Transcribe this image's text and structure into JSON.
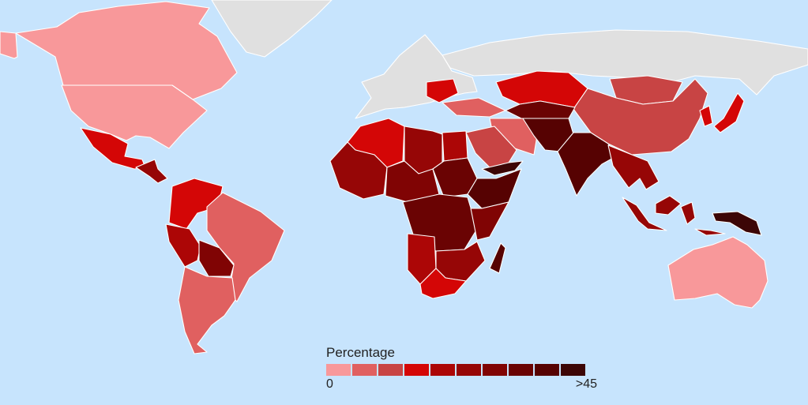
{
  "legend": {
    "title": "Percentage",
    "min_label": "0",
    "max_label": ">45",
    "colors": [
      "#f8989a",
      "#e06060",
      "#c84444",
      "#d40606",
      "#ac0606",
      "#960606",
      "#800404",
      "#6a0303",
      "#560202",
      "#3c0606"
    ]
  },
  "colors": {
    "ocean": "#c7e4fd",
    "no_data": "#e0e0e0",
    "border": "#ffffff"
  },
  "regions": [
    {
      "name": "Greenland",
      "level": null
    },
    {
      "name": "Russia",
      "level": null
    },
    {
      "name": "Europe",
      "level": null
    },
    {
      "name": "Canada",
      "level": 0
    },
    {
      "name": "Alaska",
      "level": 0
    },
    {
      "name": "United States",
      "level": 0
    },
    {
      "name": "Mexico",
      "level": 3
    },
    {
      "name": "Central America",
      "level": 5
    },
    {
      "name": "Venezuela and Colombia",
      "level": 3
    },
    {
      "name": "Brazil",
      "level": 1
    },
    {
      "name": "Peru",
      "level": 4
    },
    {
      "name": "Bolivia",
      "level": 6
    },
    {
      "name": "Argentina and Chile",
      "level": 1
    },
    {
      "name": "Australia",
      "level": 0
    },
    {
      "name": "China",
      "level": 2
    },
    {
      "name": "Mongolia",
      "level": 2
    },
    {
      "name": "Kazakhstan",
      "level": 3
    },
    {
      "name": "Central Asia",
      "level": 7
    },
    {
      "name": "Afghanistan and Pakistan",
      "level": 8
    },
    {
      "name": "India",
      "level": 8
    },
    {
      "name": "Iran",
      "level": 1
    },
    {
      "name": "Saudi Arabia",
      "level": 2
    },
    {
      "name": "Yemen",
      "level": 9
    },
    {
      "name": "Southeast Asia",
      "level": 5
    },
    {
      "name": "Japan",
      "level": 3
    },
    {
      "name": "Korea",
      "level": 3
    },
    {
      "name": "Indonesia",
      "level": 5
    },
    {
      "name": "Papua New Guinea",
      "level": 9
    },
    {
      "name": "Algeria",
      "level": 3
    },
    {
      "name": "Libya",
      "level": 5
    },
    {
      "name": "Egypt",
      "level": 4
    },
    {
      "name": "West Africa",
      "level": 5
    },
    {
      "name": "Sahel",
      "level": 6
    },
    {
      "name": "Sudan",
      "level": 7
    },
    {
      "name": "Ethiopia",
      "level": 8
    },
    {
      "name": "Central Africa",
      "level": 7
    },
    {
      "name": "East Africa",
      "level": 6
    },
    {
      "name": "Angola and Namibia",
      "level": 4
    },
    {
      "name": "Southern Africa",
      "level": 5
    },
    {
      "name": "South Africa",
      "level": 3
    },
    {
      "name": "Madagascar",
      "level": 8
    },
    {
      "name": "Turkey and Caucasus",
      "level": 1
    },
    {
      "name": "Balkans",
      "level": 3
    }
  ]
}
